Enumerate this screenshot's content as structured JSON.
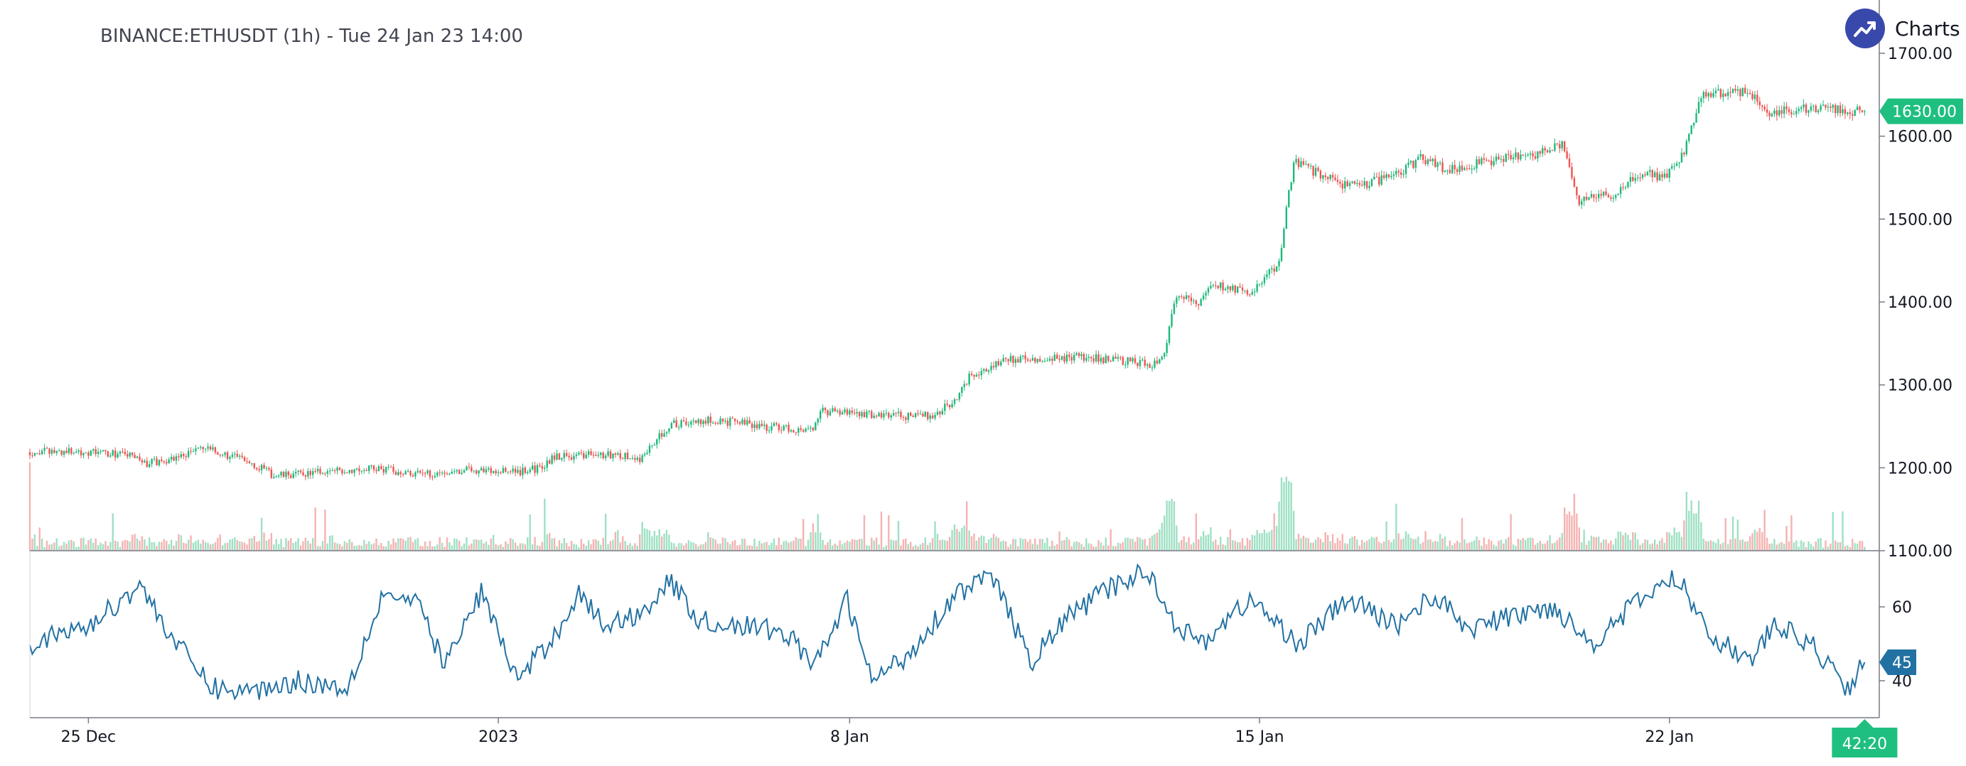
{
  "header": {
    "title": "BINANCE:ETHUSDT (1h) - Tue 24 Jan 23 14:00",
    "brand_text": "Charts p",
    "brand_icon": "trend-up-icon"
  },
  "colors": {
    "up": "#26a69a",
    "up_candle": "#1db87a",
    "down": "#ef5350",
    "up_volume": "#9fe0c4",
    "down_volume": "#f4b3b1",
    "indicator": "#2271a3",
    "price_tag": "#1fbf7f",
    "indicator_tag": "#2271a3",
    "brand": "#3949ab"
  },
  "chart_data": {
    "type": "candlestick",
    "symbol": "BINANCE:ETHUSDT",
    "interval": "1h",
    "price_axis": {
      "ylim": [
        1100,
        1730
      ],
      "ticks": [
        "1100.00",
        "1200.00",
        "1300.00",
        "1400.00",
        "1500.00",
        "1600.00",
        "1700.00"
      ]
    },
    "indicator_axis": {
      "ylim": [
        30,
        75
      ],
      "ticks": [
        "40",
        "60"
      ]
    },
    "time_labels": [
      {
        "label": "25 Dec",
        "hour": 24
      },
      {
        "label": "2023",
        "hour": 192
      },
      {
        "label": "8 Jan",
        "hour": 336
      },
      {
        "label": "15 Jan",
        "hour": 504
      },
      {
        "label": "22 Jan",
        "hour": 672
      }
    ],
    "x_range_hours": [
      0,
      758
    ],
    "last_hour": 752,
    "price_keypoints": [
      [
        0,
        1219
      ],
      [
        18,
        1220
      ],
      [
        30,
        1218
      ],
      [
        40,
        1216
      ],
      [
        48,
        1205
      ],
      [
        60,
        1212
      ],
      [
        70,
        1224
      ],
      [
        90,
        1208
      ],
      [
        100,
        1190
      ],
      [
        120,
        1195
      ],
      [
        140,
        1200
      ],
      [
        160,
        1192
      ],
      [
        180,
        1198
      ],
      [
        200,
        1195
      ],
      [
        210,
        1200
      ],
      [
        215,
        1214
      ],
      [
        240,
        1216
      ],
      [
        250,
        1210
      ],
      [
        255,
        1228
      ],
      [
        262,
        1252
      ],
      [
        280,
        1258
      ],
      [
        300,
        1250
      ],
      [
        310,
        1248
      ],
      [
        320,
        1244
      ],
      [
        325,
        1268
      ],
      [
        350,
        1264
      ],
      [
        360,
        1262
      ],
      [
        370,
        1264
      ],
      [
        378,
        1278
      ],
      [
        385,
        1310
      ],
      [
        400,
        1332
      ],
      [
        415,
        1330
      ],
      [
        430,
        1334
      ],
      [
        445,
        1330
      ],
      [
        460,
        1325
      ],
      [
        465,
        1340
      ],
      [
        470,
        1408
      ],
      [
        480,
        1400
      ],
      [
        485,
        1420
      ],
      [
        500,
        1410
      ],
      [
        510,
        1440
      ],
      [
        512,
        1450
      ],
      [
        518,
        1570
      ],
      [
        540,
        1538
      ],
      [
        560,
        1552
      ],
      [
        570,
        1575
      ],
      [
        580,
        1560
      ],
      [
        600,
        1570
      ],
      [
        620,
        1580
      ],
      [
        628,
        1590
      ],
      [
        635,
        1520
      ],
      [
        650,
        1532
      ],
      [
        660,
        1555
      ],
      [
        670,
        1550
      ],
      [
        678,
        1578
      ],
      [
        685,
        1650
      ],
      [
        695,
        1652
      ],
      [
        705,
        1655
      ],
      [
        712,
        1628
      ],
      [
        725,
        1632
      ],
      [
        740,
        1632
      ],
      [
        752,
        1630
      ]
    ],
    "indicator_keypoints": [
      [
        0,
        50
      ],
      [
        25,
        55
      ],
      [
        45,
        66
      ],
      [
        60,
        50
      ],
      [
        75,
        38
      ],
      [
        90,
        37
      ],
      [
        110,
        40
      ],
      [
        130,
        38
      ],
      [
        145,
        64
      ],
      [
        160,
        60
      ],
      [
        170,
        44
      ],
      [
        185,
        64
      ],
      [
        200,
        40
      ],
      [
        215,
        52
      ],
      [
        225,
        64
      ],
      [
        235,
        55
      ],
      [
        250,
        58
      ],
      [
        262,
        67
      ],
      [
        275,
        56
      ],
      [
        290,
        55
      ],
      [
        310,
        53
      ],
      [
        322,
        44
      ],
      [
        335,
        62
      ],
      [
        345,
        40
      ],
      [
        360,
        47
      ],
      [
        380,
        64
      ],
      [
        395,
        68
      ],
      [
        410,
        45
      ],
      [
        425,
        57
      ],
      [
        440,
        64
      ],
      [
        458,
        70
      ],
      [
        470,
        55
      ],
      [
        480,
        50
      ],
      [
        500,
        62
      ],
      [
        520,
        50
      ],
      [
        540,
        62
      ],
      [
        560,
        55
      ],
      [
        575,
        63
      ],
      [
        590,
        54
      ],
      [
        605,
        57
      ],
      [
        625,
        60
      ],
      [
        640,
        50
      ],
      [
        660,
        62
      ],
      [
        675,
        68
      ],
      [
        690,
        52
      ],
      [
        705,
        45
      ],
      [
        715,
        55
      ],
      [
        730,
        50
      ],
      [
        745,
        38
      ],
      [
        752,
        45
      ]
    ],
    "last_price": "1630.00",
    "last_indicator": "45",
    "countdown": "42:20"
  }
}
